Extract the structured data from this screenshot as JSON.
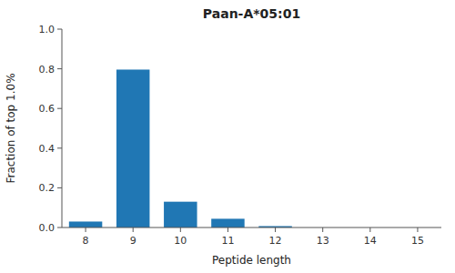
{
  "chart_data": {
    "type": "bar",
    "title": "Paan-A*05:01",
    "xlabel": "Peptide length",
    "ylabel": "Fraction of top 1.0%",
    "categories": [
      8,
      9,
      10,
      11,
      12,
      13,
      14,
      15
    ],
    "values": [
      0.03,
      0.796,
      0.13,
      0.044,
      0.007,
      0.0,
      0.0,
      0.0
    ],
    "color": "#2077b4",
    "ylim": [
      0.0,
      1.0
    ],
    "yticks": [
      {
        "value": 0.0,
        "label": "0.0"
      },
      0.2,
      0.4,
      0.6,
      0.8,
      {
        "value": 1.0,
        "label": "1.0"
      }
    ],
    "grid": false
  }
}
